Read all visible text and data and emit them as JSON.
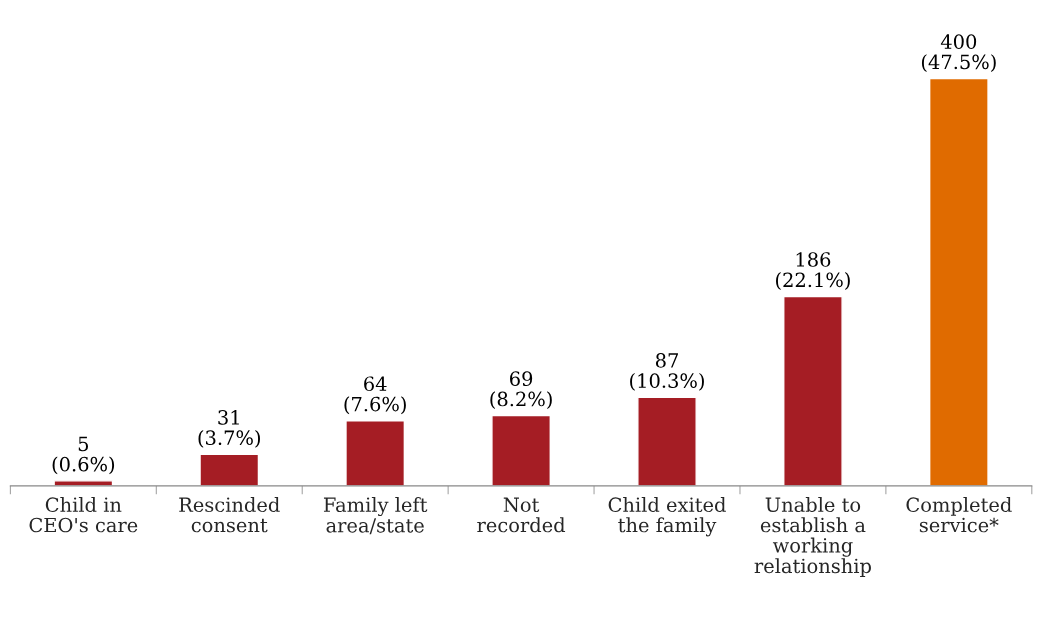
{
  "chart_data": {
    "type": "bar",
    "categories": [
      "Child in\nCEO's care",
      "Rescinded\nconsent",
      "Family left\narea/state",
      "Not\nrecorded",
      "Child exited\nthe family",
      "Unable to\nestablish a\nworking\nrelationship",
      "Completed\nservice*"
    ],
    "values": [
      5,
      31,
      64,
      69,
      87,
      186,
      400
    ],
    "value_labels": [
      "5\n(0.6%)",
      "31\n(3.7%)",
      "64\n(7.6%)",
      "69\n(8.2%)",
      "87\n(10.3%)",
      "186\n(22.1%)",
      "400\n(47.5%)"
    ],
    "colors": [
      "#a51d24",
      "#a51d24",
      "#a51d24",
      "#a51d24",
      "#a51d24",
      "#a51d24",
      "#e06b00"
    ],
    "grid": false,
    "legend": false
  }
}
